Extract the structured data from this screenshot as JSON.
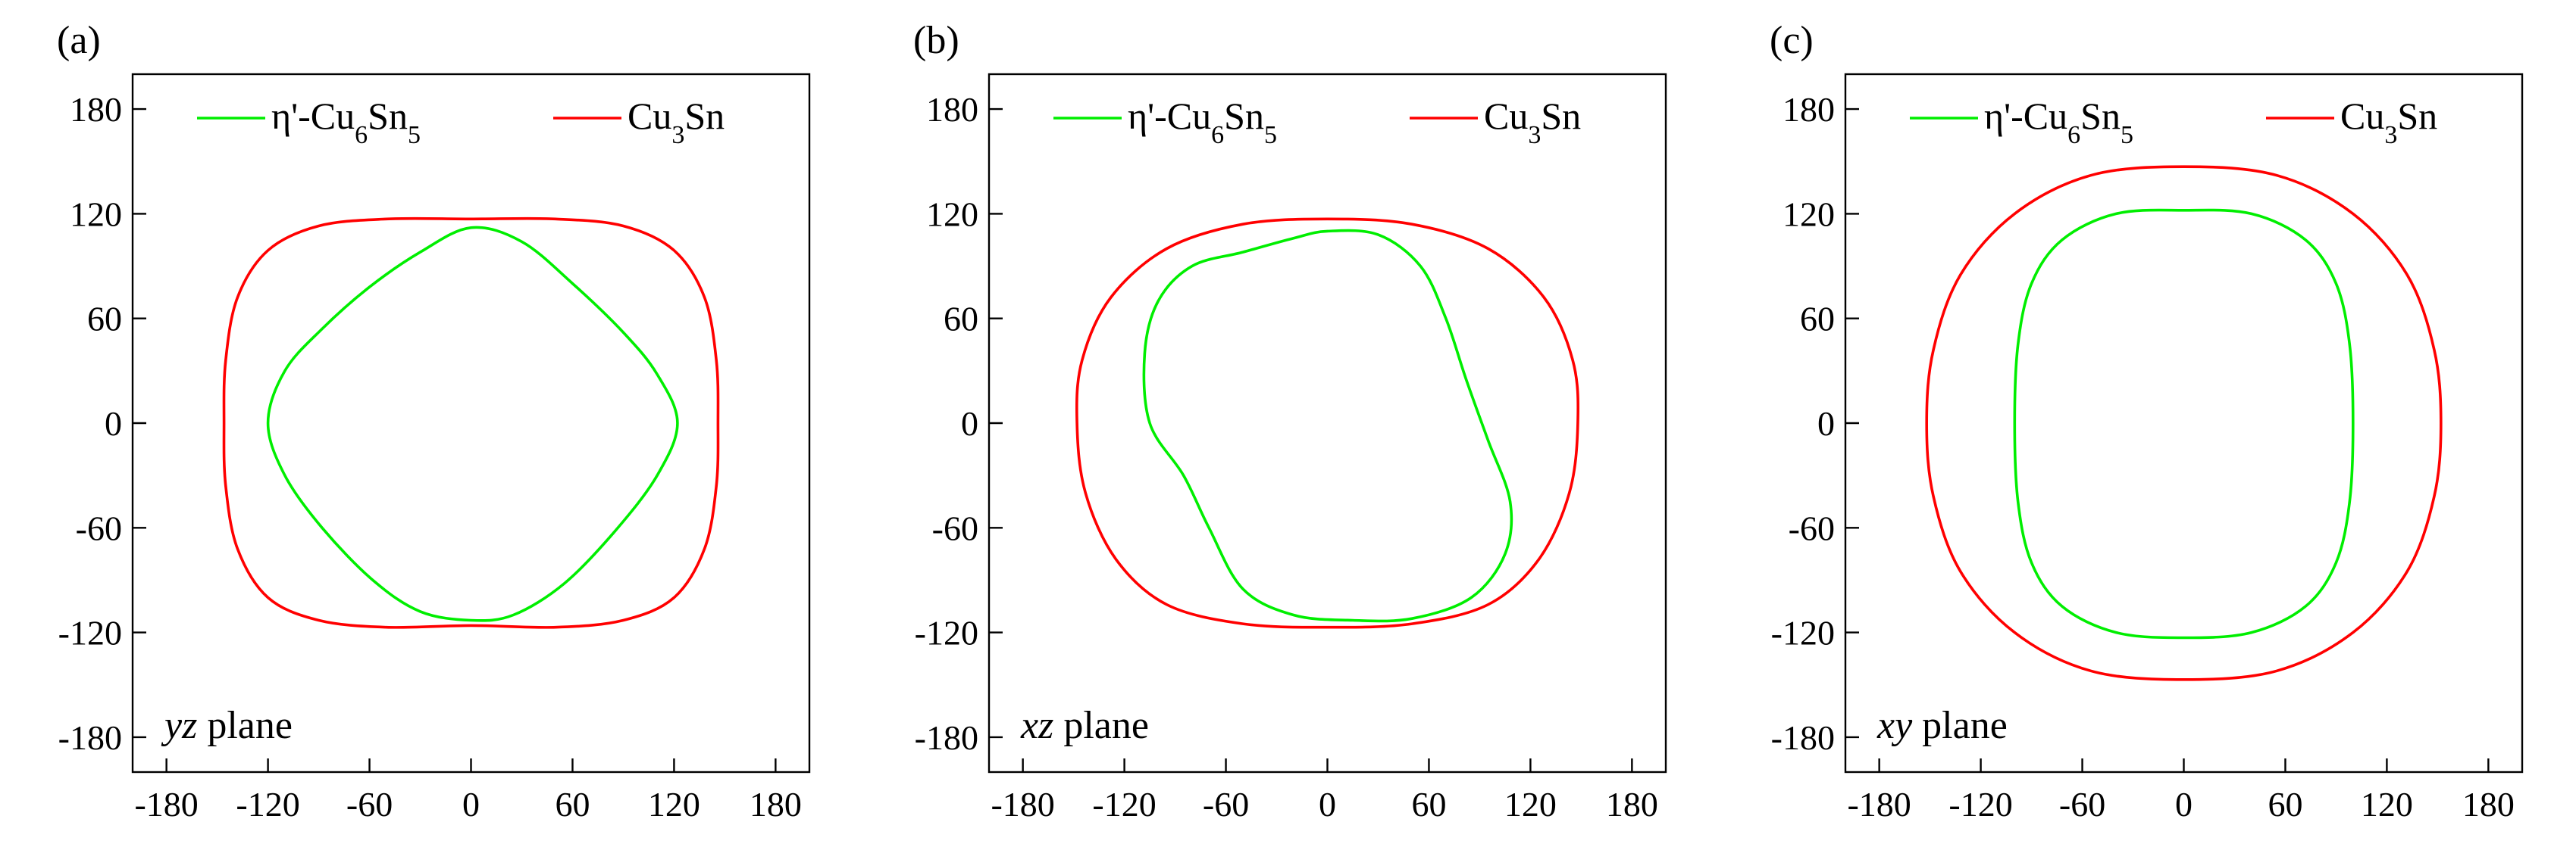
{
  "figure": {
    "panels": [
      {
        "label": "(a)",
        "plane": "yz",
        "plane_word": "plane",
        "legend": [
          "η'-Cu6Sn5",
          "Cu3Sn"
        ]
      },
      {
        "label": "(b)",
        "plane": "xz",
        "plane_word": "plane",
        "legend": [
          "η'-Cu6Sn5",
          "Cu3Sn"
        ]
      },
      {
        "label": "(c)",
        "plane": "xy",
        "plane_word": "plane",
        "legend": [
          "η'-Cu6Sn5",
          "Cu3Sn"
        ]
      }
    ]
  },
  "chart_data": [
    {
      "type": "line",
      "title": "",
      "annotation": "yz plane",
      "xlabel": "",
      "ylabel": "",
      "xlim": [
        -200,
        200
      ],
      "ylim": [
        -200,
        200
      ],
      "xticks": [
        -180,
        -120,
        -60,
        0,
        60,
        120,
        180
      ],
      "yticks": [
        -180,
        -120,
        -60,
        0,
        60,
        120,
        180
      ],
      "legend_position": "top",
      "grid": false,
      "series": [
        {
          "name": "η'-Cu6Sn5",
          "color": "#00ee00",
          "closed": true,
          "points": [
            [
              0,
              112
            ],
            [
              30,
              104
            ],
            [
              60,
              80
            ],
            [
              90,
              52
            ],
            [
              110,
              28
            ],
            [
              122,
              0
            ],
            [
              110,
              -30
            ],
            [
              85,
              -62
            ],
            [
              55,
              -92
            ],
            [
              25,
              -110
            ],
            [
              0,
              -113
            ],
            [
              -30,
              -108
            ],
            [
              -58,
              -90
            ],
            [
              -88,
              -60
            ],
            [
              -110,
              -30
            ],
            [
              -120,
              0
            ],
            [
              -110,
              30
            ],
            [
              -88,
              54
            ],
            [
              -60,
              78
            ],
            [
              -30,
              98
            ]
          ]
        },
        {
          "name": "Cu3Sn",
          "color": "#ff0000",
          "closed": true,
          "points": [
            [
              0,
              117
            ],
            [
              50,
              117
            ],
            [
              90,
              113
            ],
            [
              120,
              99
            ],
            [
              138,
              72
            ],
            [
              145,
              36
            ],
            [
              146,
              0
            ],
            [
              145,
              -36
            ],
            [
              138,
              -72
            ],
            [
              120,
              -100
            ],
            [
              90,
              -113
            ],
            [
              50,
              -117
            ],
            [
              0,
              -116
            ],
            [
              -50,
              -117
            ],
            [
              -90,
              -113
            ],
            [
              -120,
              -100
            ],
            [
              -138,
              -72
            ],
            [
              -145,
              -36
            ],
            [
              -146,
              0
            ],
            [
              -145,
              36
            ],
            [
              -138,
              72
            ],
            [
              -120,
              99
            ],
            [
              -90,
              113
            ],
            [
              -50,
              117
            ]
          ]
        }
      ]
    },
    {
      "type": "line",
      "title": "",
      "annotation": "xz plane",
      "xlabel": "",
      "ylabel": "",
      "xlim": [
        -200,
        200
      ],
      "ylim": [
        -200,
        200
      ],
      "xticks": [
        -180,
        -120,
        -60,
        0,
        60,
        120,
        180
      ],
      "yticks": [
        -180,
        -120,
        -60,
        0,
        60,
        120,
        180
      ],
      "legend_position": "top",
      "grid": false,
      "series": [
        {
          "name": "η'-Cu6Sn5",
          "color": "#00ee00",
          "closed": true,
          "points": [
            [
              0,
              110
            ],
            [
              30,
              108
            ],
            [
              55,
              90
            ],
            [
              70,
              60
            ],
            [
              82,
              25
            ],
            [
              95,
              -10
            ],
            [
              108,
              -45
            ],
            [
              105,
              -75
            ],
            [
              85,
              -100
            ],
            [
              50,
              -112
            ],
            [
              15,
              -113
            ],
            [
              -20,
              -110
            ],
            [
              -50,
              -95
            ],
            [
              -70,
              -60
            ],
            [
              -85,
              -30
            ],
            [
              -105,
              0
            ],
            [
              -108,
              40
            ],
            [
              -100,
              70
            ],
            [
              -80,
              90
            ],
            [
              -50,
              98
            ],
            [
              -20,
              106
            ]
          ]
        },
        {
          "name": "Cu3Sn",
          "color": "#ff0000",
          "closed": true,
          "points": [
            [
              0,
              117
            ],
            [
              50,
              114
            ],
            [
              95,
              100
            ],
            [
              128,
              72
            ],
            [
              145,
              36
            ],
            [
              148,
              0
            ],
            [
              143,
              -40
            ],
            [
              125,
              -78
            ],
            [
              95,
              -104
            ],
            [
              50,
              -115
            ],
            [
              0,
              -117
            ],
            [
              -50,
              -115
            ],
            [
              -95,
              -104
            ],
            [
              -125,
              -78
            ],
            [
              -143,
              -40
            ],
            [
              -148,
              0
            ],
            [
              -145,
              36
            ],
            [
              -128,
              72
            ],
            [
              -95,
              100
            ],
            [
              -50,
              114
            ]
          ]
        }
      ]
    },
    {
      "type": "line",
      "title": "",
      "annotation": "xy plane",
      "xlabel": "",
      "ylabel": "",
      "xlim": [
        -200,
        200
      ],
      "ylim": [
        -200,
        200
      ],
      "xticks": [
        -180,
        -120,
        -60,
        0,
        60,
        120,
        180
      ],
      "yticks": [
        -180,
        -120,
        -60,
        0,
        60,
        120,
        180
      ],
      "legend_position": "top",
      "grid": false,
      "series": [
        {
          "name": "η'-Cu6Sn5",
          "color": "#00ee00",
          "closed": true,
          "points": [
            [
              0,
              122
            ],
            [
              40,
              120
            ],
            [
              72,
              105
            ],
            [
              90,
              80
            ],
            [
              98,
              45
            ],
            [
              100,
              0
            ],
            [
              98,
              -45
            ],
            [
              90,
              -80
            ],
            [
              72,
              -105
            ],
            [
              40,
              -120
            ],
            [
              0,
              -123
            ],
            [
              -40,
              -120
            ],
            [
              -72,
              -105
            ],
            [
              -90,
              -80
            ],
            [
              -98,
              -45
            ],
            [
              -100,
              0
            ],
            [
              -98,
              45
            ],
            [
              -90,
              80
            ],
            [
              -72,
              105
            ],
            [
              -40,
              120
            ]
          ]
        },
        {
          "name": "Cu3Sn",
          "color": "#ff0000",
          "closed": true,
          "points": [
            [
              0,
              147
            ],
            [
              55,
              142
            ],
            [
              100,
              120
            ],
            [
              132,
              85
            ],
            [
              148,
              42
            ],
            [
              152,
              0
            ],
            [
              148,
              -42
            ],
            [
              132,
              -85
            ],
            [
              100,
              -120
            ],
            [
              55,
              -142
            ],
            [
              0,
              -147
            ],
            [
              -55,
              -142
            ],
            [
              -100,
              -120
            ],
            [
              -132,
              -85
            ],
            [
              -148,
              -42
            ],
            [
              -152,
              0
            ],
            [
              -148,
              42
            ],
            [
              -132,
              85
            ],
            [
              -100,
              120
            ],
            [
              -55,
              142
            ]
          ]
        }
      ]
    }
  ]
}
